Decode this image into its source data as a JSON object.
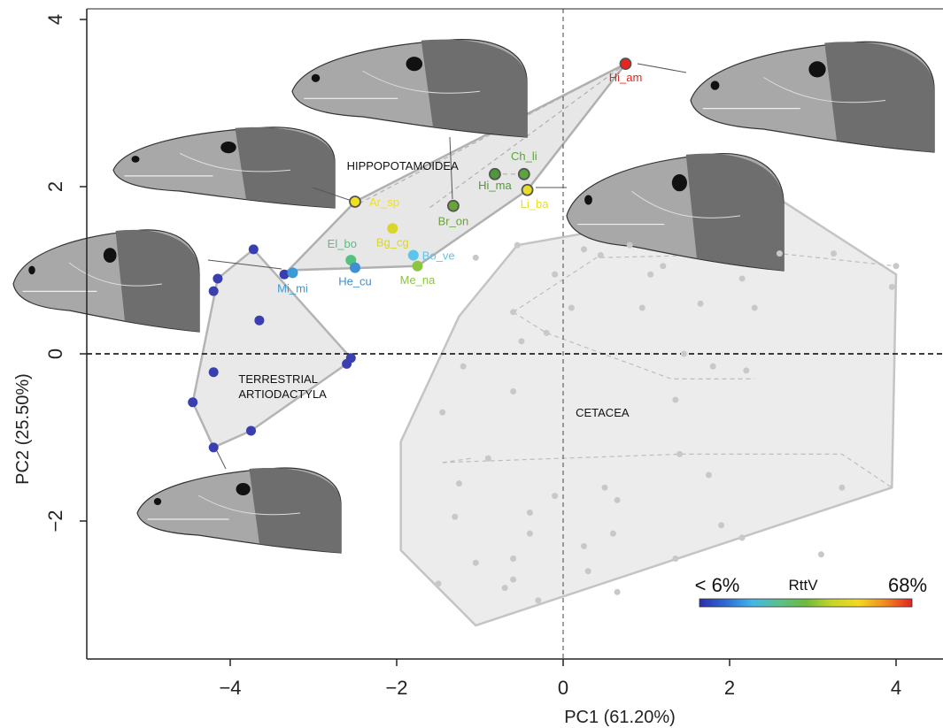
{
  "chart_data": {
    "type": "scatter",
    "xlabel": "PC1 (61.20%)",
    "ylabel": "PC2 (25.50%)",
    "xlim": [
      -5.6,
      4.4
    ],
    "ylim": [
      -3.6,
      4.1
    ],
    "xticks": [
      -4,
      -2,
      0,
      2,
      4
    ],
    "yticks": [
      -2,
      0,
      2,
      4
    ],
    "xtick_labels": [
      "−4",
      "−2",
      "0",
      "2",
      "4"
    ],
    "ytick_labels": [
      "−2",
      "0",
      "2",
      "4"
    ],
    "grid": false,
    "reference_lines": {
      "x": 0,
      "y": 0
    },
    "groups": [
      {
        "name": "HIPPOPOTAMOIDEA",
        "label_lines": [
          "HIPPOPOTAMOIDEA"
        ],
        "label_pos": [
          -2.6,
          2.2
        ]
      },
      {
        "name": "TERRESTRIAL ARTIODACTYLA",
        "label_lines": [
          "TERRESTRIAL",
          "ARTIODACTYLA"
        ],
        "label_pos": [
          -3.9,
          -0.35
        ]
      },
      {
        "name": "CETACEA",
        "label_lines": [
          "CETACEA"
        ],
        "label_pos": [
          0.15,
          -0.75
        ]
      }
    ],
    "labeled_points": [
      {
        "label": "Hi_am",
        "x": 0.75,
        "y": 3.47,
        "color": "#e8251e",
        "outline": true
      },
      {
        "label": "Ch_li",
        "x": -0.47,
        "y": 2.15,
        "color": "#5aa63c",
        "outline": true
      },
      {
        "label": "Hi_ma",
        "x": -0.82,
        "y": 2.15,
        "color": "#4f9a38",
        "outline": true
      },
      {
        "label": "Li_ba",
        "x": -0.43,
        "y": 1.96,
        "color": "#e8dc2a",
        "outline": true
      },
      {
        "label": "Br_on",
        "x": -1.32,
        "y": 1.77,
        "color": "#6aa33a",
        "outline": true
      },
      {
        "label": "Ar_sp",
        "x": -2.5,
        "y": 1.82,
        "color": "#f0e020",
        "outline": true
      },
      {
        "label": "Bg_cg",
        "x": -2.05,
        "y": 1.5,
        "color": "#d8d62a",
        "outline": false
      },
      {
        "label": "El_bo",
        "x": -2.55,
        "y": 1.12,
        "color": "#52c27c",
        "outline": false
      },
      {
        "label": "He_cu",
        "x": -2.5,
        "y": 1.03,
        "color": "#3f8fd4",
        "outline": false
      },
      {
        "label": "Bo_ve",
        "x": -1.8,
        "y": 1.18,
        "color": "#5ac6ec",
        "outline": false
      },
      {
        "label": "Me_na",
        "x": -1.75,
        "y": 1.05,
        "color": "#8cc640",
        "outline": false
      },
      {
        "label": "Mi_mi",
        "x": -3.25,
        "y": 0.97,
        "color": "#3a9ad8",
        "outline": false
      }
    ],
    "terrestrial_points": [
      [
        -3.72,
        1.25
      ],
      [
        -4.15,
        0.9
      ],
      [
        -4.2,
        0.75
      ],
      [
        -3.65,
        0.4
      ],
      [
        -3.35,
        0.95
      ],
      [
        -2.55,
        -0.05
      ],
      [
        -2.6,
        -0.12
      ],
      [
        -4.2,
        -0.22
      ],
      [
        -4.45,
        -0.58
      ],
      [
        -3.75,
        -0.92
      ],
      [
        -4.2,
        -1.12
      ]
    ],
    "cetacea_points": [
      [
        0.25,
        1.25
      ],
      [
        0.45,
        1.18
      ],
      [
        0.8,
        1.3
      ],
      [
        1.2,
        1.05
      ],
      [
        1.05,
        0.95
      ],
      [
        0.95,
        0.55
      ],
      [
        1.65,
        0.6
      ],
      [
        2.15,
        0.9
      ],
      [
        2.6,
        1.2
      ],
      [
        2.3,
        0.55
      ],
      [
        3.25,
        1.2
      ],
      [
        4.0,
        1.05
      ],
      [
        3.95,
        0.8
      ],
      [
        -0.55,
        1.3
      ],
      [
        0.1,
        0.55
      ],
      [
        -0.2,
        0.25
      ],
      [
        -0.6,
        0.5
      ],
      [
        -0.5,
        0.15
      ],
      [
        -1.05,
        1.15
      ],
      [
        -0.1,
        0.95
      ],
      [
        1.45,
        0.0
      ],
      [
        1.8,
        -0.15
      ],
      [
        1.35,
        -0.55
      ],
      [
        2.2,
        -0.2
      ],
      [
        -1.2,
        -0.15
      ],
      [
        -0.6,
        -0.45
      ],
      [
        -1.45,
        -0.7
      ],
      [
        -0.9,
        -1.25
      ],
      [
        1.4,
        -1.2
      ],
      [
        1.75,
        -1.45
      ],
      [
        -0.1,
        -1.7
      ],
      [
        0.5,
        -1.6
      ],
      [
        0.65,
        -1.75
      ],
      [
        -0.4,
        -1.9
      ],
      [
        -1.25,
        -1.55
      ],
      [
        -1.3,
        -1.95
      ],
      [
        0.25,
        -2.3
      ],
      [
        0.6,
        -2.15
      ],
      [
        1.35,
        -2.45
      ],
      [
        1.9,
        -2.05
      ],
      [
        2.15,
        -2.2
      ],
      [
        3.1,
        -2.4
      ],
      [
        3.35,
        -1.6
      ],
      [
        -0.4,
        -2.15
      ],
      [
        -0.6,
        -2.45
      ],
      [
        -1.05,
        -2.5
      ],
      [
        -1.5,
        -2.75
      ],
      [
        -0.7,
        -2.8
      ],
      [
        -0.3,
        -2.95
      ],
      [
        0.3,
        -2.6
      ],
      [
        0.65,
        -2.85
      ],
      [
        -0.6,
        -2.7
      ]
    ],
    "hull_hippo": [
      [
        -3.3,
        1.0
      ],
      [
        -2.5,
        1.82
      ],
      [
        0.75,
        3.47
      ],
      [
        -0.43,
        1.96
      ],
      [
        -1.75,
        1.05
      ]
    ],
    "hull_hippo_inner": [
      [
        [
          -1.6,
          1.75
        ],
        [
          0.75,
          3.47
        ]
      ],
      [
        [
          -2.45,
          1.8
        ],
        [
          0.75,
          3.47
        ]
      ],
      [
        [
          -0.82,
          2.15
        ],
        [
          -0.47,
          2.15
        ]
      ]
    ],
    "hull_terrestrial": [
      [
        -3.72,
        1.25
      ],
      [
        -2.55,
        -0.05
      ],
      [
        -2.6,
        -0.12
      ],
      [
        -3.75,
        -0.92
      ],
      [
        -4.2,
        -1.12
      ],
      [
        -4.45,
        -0.58
      ],
      [
        -4.15,
        0.9
      ]
    ],
    "hull_cetacea": [
      [
        -1.25,
        0.45
      ],
      [
        -0.55,
        1.3
      ],
      [
        2.6,
        1.85
      ],
      [
        4.0,
        0.95
      ],
      [
        3.95,
        -1.6
      ],
      [
        -1.05,
        -3.25
      ],
      [
        -1.95,
        -2.35
      ],
      [
        -1.95,
        -1.05
      ]
    ],
    "hull_cetacea_inner": [
      [
        [
          -0.6,
          0.5
        ],
        [
          -0.2,
          0.25
        ],
        [
          1.3,
          -0.3
        ],
        [
          2.3,
          -0.3
        ]
      ],
      [
        [
          -0.6,
          0.5
        ],
        [
          0.4,
          1.15
        ],
        [
          2.6,
          1.2
        ],
        [
          4.0,
          1.05
        ]
      ],
      [
        [
          -1.45,
          -1.3
        ],
        [
          1.4,
          -1.2
        ],
        [
          3.35,
          -1.2
        ],
        [
          3.95,
          -1.6
        ]
      ],
      [
        [
          -1.45,
          -1.3
        ],
        [
          -1.1,
          -1.25
        ]
      ]
    ],
    "legend": {
      "title": "RttV",
      "min_label": "< 6%",
      "max_label": "68%",
      "colors": [
        "#2c2fa8",
        "#2f6cd6",
        "#44b6e8",
        "#5cc08c",
        "#6dbb3c",
        "#c9d52a",
        "#f2d820",
        "#f08a22",
        "#e02424"
      ]
    }
  }
}
